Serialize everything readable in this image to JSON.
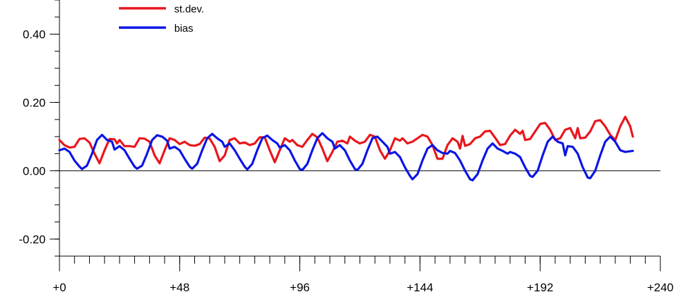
{
  "chart_data": {
    "type": "line",
    "title": "",
    "xlabel": "",
    "ylabel": "",
    "xlim": [
      0,
      240
    ],
    "ylim": [
      -0.25,
      0.5
    ],
    "grid": false,
    "legend_position": "top-left",
    "zero_line": true,
    "x_ticks": [
      0,
      48,
      96,
      144,
      192,
      240
    ],
    "x_tick_labels": [
      "+0",
      "+48",
      "+96",
      "+144",
      "+192",
      "+240"
    ],
    "x_minor_step": 6,
    "y_ticks": [
      -0.2,
      0.0,
      0.2,
      0.4
    ],
    "y_tick_labels": [
      "-0.20",
      "0.00",
      "0.20",
      "0.40"
    ],
    "y_minor_step": 0.05,
    "series": [
      {
        "name": "st.dev.",
        "color": "#e8161c",
        "points": [
          [
            0,
            0.09
          ],
          [
            2,
            0.075
          ],
          [
            4,
            0.068
          ],
          [
            6,
            0.07
          ],
          [
            8,
            0.093
          ],
          [
            10,
            0.095
          ],
          [
            12,
            0.083
          ],
          [
            14,
            0.05
          ],
          [
            16,
            0.022
          ],
          [
            18,
            0.06
          ],
          [
            20,
            0.093
          ],
          [
            22,
            0.092
          ],
          [
            23,
            0.08
          ],
          [
            24,
            0.09
          ],
          [
            26,
            0.072
          ],
          [
            28,
            0.072
          ],
          [
            30,
            0.07
          ],
          [
            32,
            0.095
          ],
          [
            34,
            0.094
          ],
          [
            36,
            0.085
          ],
          [
            38,
            0.045
          ],
          [
            40,
            0.022
          ],
          [
            42,
            0.06
          ],
          [
            44,
            0.095
          ],
          [
            46,
            0.09
          ],
          [
            48,
            0.078
          ],
          [
            50,
            0.085
          ],
          [
            52,
            0.075
          ],
          [
            54,
            0.073
          ],
          [
            56,
            0.078
          ],
          [
            58,
            0.097
          ],
          [
            60,
            0.094
          ],
          [
            62,
            0.07
          ],
          [
            64,
            0.028
          ],
          [
            66,
            0.045
          ],
          [
            68,
            0.09
          ],
          [
            70,
            0.095
          ],
          [
            72,
            0.08
          ],
          [
            74,
            0.083
          ],
          [
            76,
            0.075
          ],
          [
            78,
            0.08
          ],
          [
            80,
            0.098
          ],
          [
            82,
            0.098
          ],
          [
            84,
            0.06
          ],
          [
            86,
            0.025
          ],
          [
            88,
            0.06
          ],
          [
            90,
            0.095
          ],
          [
            92,
            0.085
          ],
          [
            93,
            0.09
          ],
          [
            95,
            0.075
          ],
          [
            97,
            0.07
          ],
          [
            99,
            0.09
          ],
          [
            101,
            0.108
          ],
          [
            103,
            0.098
          ],
          [
            105,
            0.065
          ],
          [
            107,
            0.028
          ],
          [
            109,
            0.055
          ],
          [
            111,
            0.085
          ],
          [
            113,
            0.088
          ],
          [
            115,
            0.08
          ],
          [
            116,
            0.1
          ],
          [
            118,
            0.088
          ],
          [
            120,
            0.08
          ],
          [
            122,
            0.085
          ],
          [
            124,
            0.105
          ],
          [
            126,
            0.1
          ],
          [
            128,
            0.06
          ],
          [
            130,
            0.035
          ],
          [
            132,
            0.06
          ],
          [
            134,
            0.095
          ],
          [
            136,
            0.088
          ],
          [
            137,
            0.095
          ],
          [
            139,
            0.08
          ],
          [
            141,
            0.085
          ],
          [
            143,
            0.095
          ],
          [
            145,
            0.105
          ],
          [
            147,
            0.1
          ],
          [
            149,
            0.075
          ],
          [
            151,
            0.035
          ],
          [
            153,
            0.035
          ],
          [
            155,
            0.075
          ],
          [
            157,
            0.095
          ],
          [
            159,
            0.085
          ],
          [
            160,
            0.065
          ],
          [
            161,
            0.102
          ],
          [
            162,
            0.073
          ],
          [
            164,
            0.078
          ],
          [
            166,
            0.095
          ],
          [
            168,
            0.1
          ],
          [
            170,
            0.115
          ],
          [
            172,
            0.117
          ],
          [
            174,
            0.097
          ],
          [
            176,
            0.075
          ],
          [
            178,
            0.078
          ],
          [
            180,
            0.103
          ],
          [
            182,
            0.12
          ],
          [
            184,
            0.108
          ],
          [
            185,
            0.117
          ],
          [
            186,
            0.09
          ],
          [
            188,
            0.093
          ],
          [
            190,
            0.115
          ],
          [
            192,
            0.137
          ],
          [
            194,
            0.14
          ],
          [
            196,
            0.12
          ],
          [
            198,
            0.09
          ],
          [
            200,
            0.095
          ],
          [
            202,
            0.12
          ],
          [
            204,
            0.125
          ],
          [
            206,
            0.095
          ],
          [
            207,
            0.125
          ],
          [
            208,
            0.095
          ],
          [
            210,
            0.097
          ],
          [
            212,
            0.115
          ],
          [
            214,
            0.145
          ],
          [
            216,
            0.148
          ],
          [
            218,
            0.13
          ],
          [
            220,
            0.105
          ],
          [
            222,
            0.09
          ],
          [
            224,
            0.13
          ],
          [
            226,
            0.158
          ],
          [
            228,
            0.13
          ],
          [
            229,
            0.1
          ]
        ]
      },
      {
        "name": "bias",
        "color": "#0a14e6",
        "points": [
          [
            0,
            0.06
          ],
          [
            2,
            0.065
          ],
          [
            4,
            0.055
          ],
          [
            6,
            0.03
          ],
          [
            8,
            0.012
          ],
          [
            9,
            0.005
          ],
          [
            11,
            0.015
          ],
          [
            13,
            0.05
          ],
          [
            15,
            0.09
          ],
          [
            17,
            0.105
          ],
          [
            19,
            0.09
          ],
          [
            21,
            0.085
          ],
          [
            22,
            0.062
          ],
          [
            24,
            0.072
          ],
          [
            26,
            0.06
          ],
          [
            28,
            0.035
          ],
          [
            30,
            0.012
          ],
          [
            31,
            0.006
          ],
          [
            33,
            0.015
          ],
          [
            35,
            0.05
          ],
          [
            37,
            0.09
          ],
          [
            39,
            0.104
          ],
          [
            41,
            0.1
          ],
          [
            43,
            0.088
          ],
          [
            44,
            0.065
          ],
          [
            46,
            0.07
          ],
          [
            48,
            0.06
          ],
          [
            50,
            0.035
          ],
          [
            52,
            0.012
          ],
          [
            53,
            0.006
          ],
          [
            55,
            0.02
          ],
          [
            57,
            0.06
          ],
          [
            59,
            0.095
          ],
          [
            61,
            0.108
          ],
          [
            63,
            0.095
          ],
          [
            65,
            0.085
          ],
          [
            66,
            0.07
          ],
          [
            68,
            0.08
          ],
          [
            70,
            0.06
          ],
          [
            72,
            0.035
          ],
          [
            74,
            0.012
          ],
          [
            75,
            0.004
          ],
          [
            77,
            0.02
          ],
          [
            79,
            0.06
          ],
          [
            81,
            0.095
          ],
          [
            83,
            0.103
          ],
          [
            85,
            0.09
          ],
          [
            87,
            0.08
          ],
          [
            88,
            0.068
          ],
          [
            90,
            0.075
          ],
          [
            92,
            0.06
          ],
          [
            94,
            0.03
          ],
          [
            96,
            0.005
          ],
          [
            97,
            0.002
          ],
          [
            99,
            0.02
          ],
          [
            101,
            0.06
          ],
          [
            103,
            0.095
          ],
          [
            105,
            0.11
          ],
          [
            107,
            0.095
          ],
          [
            109,
            0.085
          ],
          [
            110,
            0.065
          ],
          [
            112,
            0.075
          ],
          [
            114,
            0.06
          ],
          [
            116,
            0.03
          ],
          [
            118,
            0.005
          ],
          [
            119,
            0.002
          ],
          [
            121,
            0.02
          ],
          [
            123,
            0.06
          ],
          [
            125,
            0.095
          ],
          [
            127,
            0.1
          ],
          [
            129,
            0.085
          ],
          [
            131,
            0.07
          ],
          [
            132,
            0.05
          ],
          [
            134,
            0.055
          ],
          [
            136,
            0.04
          ],
          [
            138,
            0.01
          ],
          [
            140,
            -0.015
          ],
          [
            141,
            -0.025
          ],
          [
            143,
            -0.01
          ],
          [
            145,
            0.03
          ],
          [
            147,
            0.065
          ],
          [
            149,
            0.075
          ],
          [
            151,
            0.06
          ],
          [
            153,
            0.052
          ],
          [
            155,
            0.05
          ],
          [
            156,
            0.058
          ],
          [
            158,
            0.052
          ],
          [
            160,
            0.03
          ],
          [
            162,
            0.0
          ],
          [
            164,
            -0.025
          ],
          [
            165,
            -0.028
          ],
          [
            167,
            -0.01
          ],
          [
            169,
            0.03
          ],
          [
            171,
            0.065
          ],
          [
            173,
            0.08
          ],
          [
            175,
            0.065
          ],
          [
            177,
            0.058
          ],
          [
            179,
            0.05
          ],
          [
            180,
            0.055
          ],
          [
            182,
            0.05
          ],
          [
            184,
            0.04
          ],
          [
            186,
            0.01
          ],
          [
            188,
            -0.015
          ],
          [
            189,
            -0.018
          ],
          [
            191,
            0.0
          ],
          [
            193,
            0.045
          ],
          [
            195,
            0.085
          ],
          [
            197,
            0.1
          ],
          [
            199,
            0.085
          ],
          [
            201,
            0.08
          ],
          [
            202,
            0.045
          ],
          [
            203,
            0.072
          ],
          [
            205,
            0.07
          ],
          [
            207,
            0.05
          ],
          [
            209,
            0.01
          ],
          [
            211,
            -0.02
          ],
          [
            212,
            -0.022
          ],
          [
            214,
            0.0
          ],
          [
            216,
            0.045
          ],
          [
            218,
            0.085
          ],
          [
            220,
            0.1
          ],
          [
            222,
            0.085
          ],
          [
            224,
            0.06
          ],
          [
            226,
            0.055
          ],
          [
            229,
            0.058
          ]
        ]
      }
    ]
  }
}
